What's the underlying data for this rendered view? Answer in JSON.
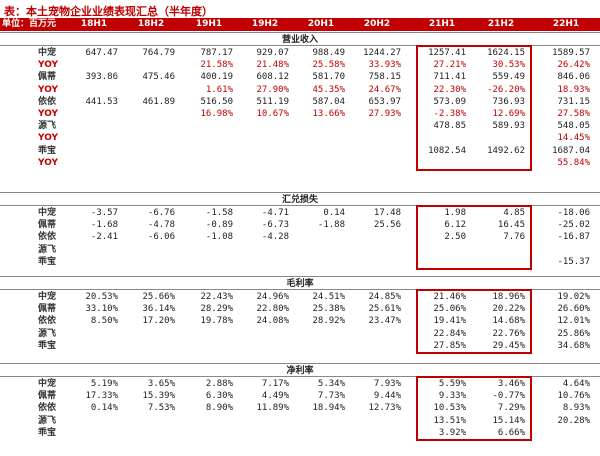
{
  "title": "表：本土宠物企业业绩表现汇总（半年度）",
  "header": {
    "unit": "单位：百万元",
    "periods": [
      "18H1",
      "18H2",
      "19H1",
      "19H2",
      "20H1",
      "20H2",
      "21H1",
      "21H2",
      "22H1"
    ]
  },
  "sections": [
    {
      "title": "营业收入",
      "rows": [
        {
          "label": "中宠",
          "values": [
            "647.47",
            "764.79",
            "787.17",
            "929.07",
            "988.49",
            "1244.27",
            "1257.41",
            "1624.15",
            "1589.57"
          ],
          "red": false
        },
        {
          "label": "YOY",
          "values": [
            "",
            "",
            "21.58%",
            "21.48%",
            "25.58%",
            "33.93%",
            "27.21%",
            "30.53%",
            "26.42%"
          ],
          "red": true
        },
        {
          "label": "佩蒂",
          "values": [
            "393.86",
            "475.46",
            "400.19",
            "608.12",
            "581.70",
            "758.15",
            "711.41",
            "559.49",
            "846.06"
          ],
          "red": false
        },
        {
          "label": "YOY",
          "values": [
            "",
            "",
            "1.61%",
            "27.90%",
            "45.35%",
            "24.67%",
            "22.30%",
            "-26.20%",
            "18.93%"
          ],
          "red": true
        },
        {
          "label": "依依",
          "values": [
            "441.53",
            "461.89",
            "516.50",
            "511.19",
            "587.04",
            "653.97",
            "573.09",
            "736.93",
            "731.15"
          ],
          "red": false
        },
        {
          "label": "YOY",
          "values": [
            "",
            "",
            "16.98%",
            "10.67%",
            "13.66%",
            "27.93%",
            "-2.38%",
            "12.69%",
            "27.58%"
          ],
          "red": true
        },
        {
          "label": "源飞",
          "values": [
            "",
            "",
            "",
            "",
            "",
            "",
            "478.85",
            "589.93",
            "548.05"
          ],
          "red": false
        },
        {
          "label": "YOY",
          "values": [
            "",
            "",
            "",
            "",
            "",
            "",
            "",
            "",
            "14.45%"
          ],
          "red": true
        },
        {
          "label": "乖宝",
          "values": [
            "",
            "",
            "",
            "",
            "",
            "",
            "1082.54",
            "1492.62",
            "1687.04"
          ],
          "red": false
        },
        {
          "label": "YOY",
          "values": [
            "",
            "",
            "",
            "",
            "",
            "",
            "",
            "",
            "55.84%"
          ],
          "red": true
        }
      ]
    },
    {
      "title": "汇兑损失",
      "rows": [
        {
          "label": "中宠",
          "values": [
            "-3.57",
            "-6.76",
            "-1.58",
            "-4.71",
            "0.14",
            "17.48",
            "1.98",
            "4.85",
            "-18.06"
          ],
          "red": false
        },
        {
          "label": "佩蒂",
          "values": [
            "-1.68",
            "-4.78",
            "-0.89",
            "-6.73",
            "-1.88",
            "25.56",
            "6.12",
            "16.45",
            "-25.02"
          ],
          "red": false
        },
        {
          "label": "依依",
          "values": [
            "-2.41",
            "-6.06",
            "-1.08",
            "-4.28",
            "",
            "",
            "2.50",
            "7.76",
            "-16.87"
          ],
          "red": false
        },
        {
          "label": "源飞",
          "values": [
            "",
            "",
            "",
            "",
            "",
            "",
            "",
            "",
            ""
          ],
          "red": false
        },
        {
          "label": "乖宝",
          "values": [
            "",
            "",
            "",
            "",
            "",
            "",
            "",
            "",
            "-15.37"
          ],
          "red": false
        }
      ]
    },
    {
      "title": "毛利率",
      "rows": [
        {
          "label": "中宠",
          "values": [
            "20.53%",
            "25.66%",
            "22.43%",
            "24.96%",
            "24.51%",
            "24.85%",
            "21.46%",
            "18.96%",
            "19.02%"
          ],
          "red": false
        },
        {
          "label": "佩蒂",
          "values": [
            "33.10%",
            "36.14%",
            "28.29%",
            "22.80%",
            "25.38%",
            "25.61%",
            "25.06%",
            "20.22%",
            "26.60%"
          ],
          "red": false
        },
        {
          "label": "依依",
          "values": [
            "8.50%",
            "17.20%",
            "19.78%",
            "24.08%",
            "28.92%",
            "23.47%",
            "19.41%",
            "14.68%",
            "12.01%"
          ],
          "red": false
        },
        {
          "label": "源飞",
          "values": [
            "",
            "",
            "",
            "",
            "",
            "",
            "22.84%",
            "22.76%",
            "25.86%"
          ],
          "red": false
        },
        {
          "label": "乖宝",
          "values": [
            "",
            "",
            "",
            "",
            "",
            "",
            "27.85%",
            "29.45%",
            "34.68%"
          ],
          "red": false
        }
      ]
    },
    {
      "title": "净利率",
      "rows": [
        {
          "label": "中宠",
          "values": [
            "5.19%",
            "3.65%",
            "2.88%",
            "7.17%",
            "5.34%",
            "7.93%",
            "5.59%",
            "3.46%",
            "4.64%"
          ],
          "red": false
        },
        {
          "label": "佩蒂",
          "values": [
            "17.33%",
            "15.39%",
            "6.30%",
            "4.49%",
            "7.73%",
            "9.44%",
            "9.33%",
            "-0.77%",
            "10.76%"
          ],
          "red": false
        },
        {
          "label": "依依",
          "values": [
            "0.14%",
            "7.53%",
            "8.90%",
            "11.89%",
            "18.94%",
            "12.73%",
            "10.53%",
            "7.29%",
            "8.93%"
          ],
          "red": false
        },
        {
          "label": "源飞",
          "values": [
            "",
            "",
            "",
            "",
            "",
            "",
            "13.51%",
            "15.14%",
            "20.28%"
          ],
          "red": false
        },
        {
          "label": "乖宝",
          "values": [
            "",
            "",
            "",
            "",
            "",
            "",
            "3.92%",
            "6.66%",
            ""
          ],
          "red": false
        }
      ]
    }
  ]
}
